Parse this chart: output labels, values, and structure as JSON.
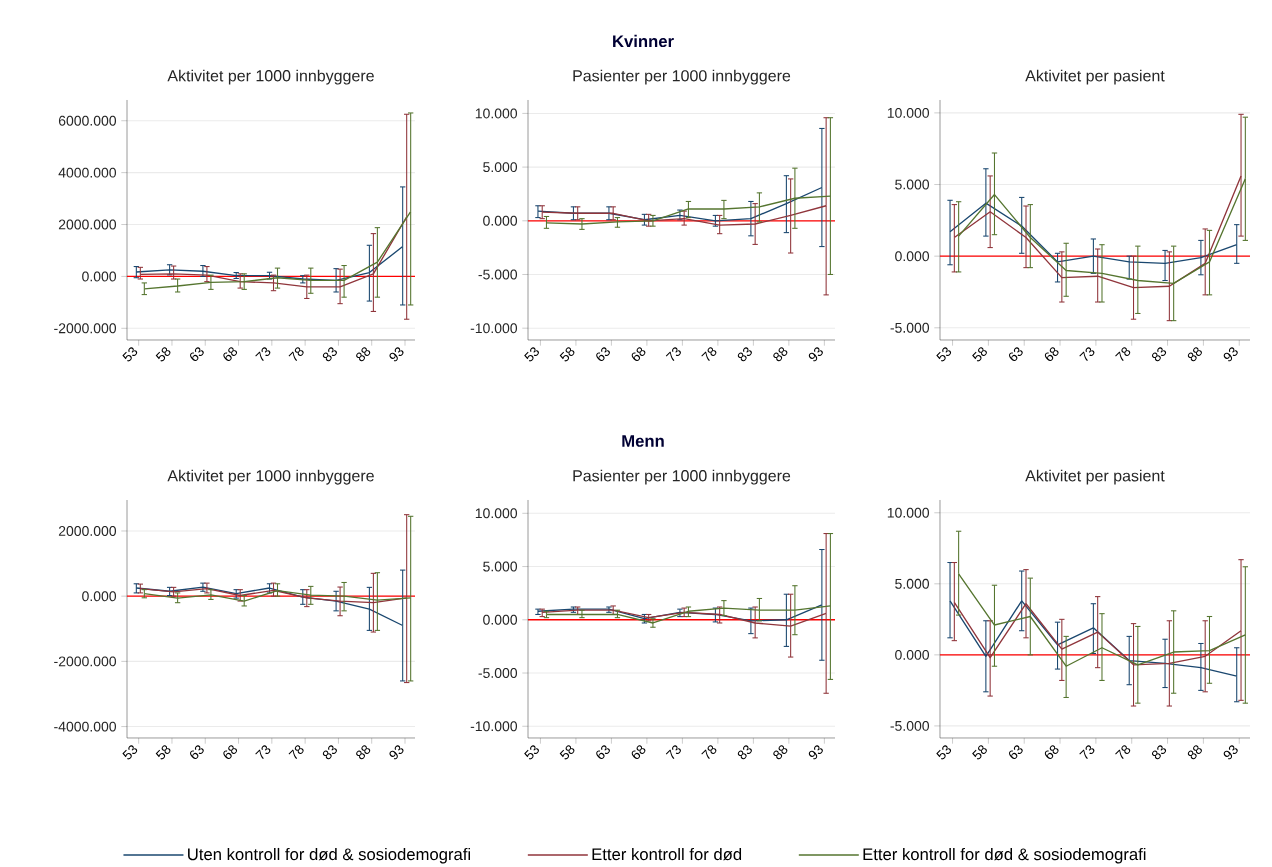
{
  "chart_data": [
    {
      "type": "line",
      "title": "Aktivitet per 1000 innbyggere",
      "categories": [
        "53",
        "58",
        "63",
        "68",
        "73",
        "78",
        "83",
        "88",
        "93"
      ],
      "ylim": [
        -2450,
        6800
      ],
      "yticks": [
        {
          "value": -2000,
          "label": "-2000.000"
        },
        {
          "value": 0,
          "label": "0.000"
        },
        {
          "value": 2000,
          "label": "2000.000"
        },
        {
          "value": 4000,
          "label": "4000.000"
        },
        {
          "value": 6000,
          "label": "6000.000"
        }
      ],
      "grid": "y",
      "ref_lines": [
        {
          "axis": "y",
          "value": 0,
          "color": "#ff0000"
        }
      ],
      "series": [
        {
          "color": "#1a476f",
          "values": [
            170,
            250,
            200,
            30,
            30,
            -100,
            -150,
            150,
            1150
          ],
          "errors": [
            [
              -50,
              380
            ],
            [
              60,
              450
            ],
            [
              0,
              420
            ],
            [
              -80,
              150
            ],
            [
              -100,
              160
            ],
            [
              -250,
              30
            ],
            [
              -600,
              300
            ],
            [
              -950,
              1200
            ],
            [
              -1100,
              3450
            ]
          ]
        },
        {
          "color": "#90353b",
          "values": [
            80,
            100,
            50,
            -200,
            -250,
            -400,
            -400,
            100,
            2300
          ],
          "errors": [
            [
              -100,
              350
            ],
            [
              -100,
              400
            ],
            [
              -200,
              380
            ],
            [
              -450,
              100
            ],
            [
              -550,
              50
            ],
            [
              -850,
              50
            ],
            [
              -1050,
              280
            ],
            [
              -1350,
              1650
            ],
            [
              -1650,
              6250
            ]
          ]
        },
        {
          "color": "#55752f",
          "values": [
            -480,
            -370,
            -230,
            -200,
            -50,
            -150,
            -150,
            550,
            2500
          ],
          "errors": [
            [
              -700,
              -250
            ],
            [
              -600,
              -100
            ],
            [
              -500,
              50
            ],
            [
              -500,
              100
            ],
            [
              -450,
              320
            ],
            [
              -650,
              320
            ],
            [
              -800,
              420
            ],
            [
              -800,
              1880
            ],
            [
              -1100,
              6300
            ]
          ]
        }
      ]
    },
    {
      "type": "line",
      "title": "Pasienter per 1000 innbyggere",
      "annotations": [
        "Kvinner"
      ],
      "categories": [
        "53",
        "58",
        "63",
        "68",
        "73",
        "78",
        "83",
        "88",
        "93"
      ],
      "ylim": [
        -11.1,
        11.25
      ],
      "yticks": [
        {
          "value": -10,
          "label": "-10.000"
        },
        {
          "value": -5,
          "label": "-5.000"
        },
        {
          "value": 0,
          "label": "0.000"
        },
        {
          "value": 5,
          "label": "5.000"
        },
        {
          "value": 10,
          "label": "10.000"
        }
      ],
      "grid": "y",
      "ref_lines": [
        {
          "axis": "y",
          "value": 0,
          "color": "#ff0000"
        }
      ],
      "series": [
        {
          "color": "#1a476f",
          "values": [
            0.9,
            0.7,
            0.7,
            0.1,
            0.5,
            0.0,
            0.2,
            1.6,
            3.1
          ],
          "errors": [
            [
              0.3,
              1.4
            ],
            [
              0.1,
              1.3
            ],
            [
              0.1,
              1.3
            ],
            [
              -0.4,
              0.6
            ],
            [
              0.1,
              1.0
            ],
            [
              -0.5,
              0.5
            ],
            [
              -1.4,
              1.8
            ],
            [
              -1.1,
              4.2
            ],
            [
              -2.4,
              8.6
            ]
          ]
        },
        {
          "color": "#90353b",
          "values": [
            0.8,
            0.7,
            0.7,
            0.0,
            0.2,
            -0.4,
            -0.3,
            0.5,
            1.4
          ],
          "errors": [
            [
              0.2,
              1.4
            ],
            [
              0.1,
              1.3
            ],
            [
              0.1,
              1.3
            ],
            [
              -0.5,
              0.6
            ],
            [
              -0.4,
              0.9
            ],
            [
              -1.2,
              0.5
            ],
            [
              -2.2,
              1.6
            ],
            [
              -3.0,
              3.9
            ],
            [
              -6.9,
              9.6
            ]
          ]
        },
        {
          "color": "#55752f",
          "values": [
            -0.2,
            -0.3,
            -0.1,
            0.0,
            1.1,
            1.1,
            1.3,
            2.1,
            2.3
          ],
          "errors": [
            [
              -0.7,
              0.4
            ],
            [
              -0.8,
              0.2
            ],
            [
              -0.6,
              0.3
            ],
            [
              -0.5,
              0.5
            ],
            [
              0.3,
              1.8
            ],
            [
              0.2,
              1.9
            ],
            [
              -0.1,
              2.6
            ],
            [
              -0.7,
              4.9
            ],
            [
              -5.0,
              9.6
            ]
          ]
        }
      ]
    },
    {
      "type": "line",
      "title": "Aktivitet per pasient",
      "categories": [
        "53",
        "58",
        "63",
        "68",
        "73",
        "78",
        "83",
        "88",
        "93"
      ],
      "ylim": [
        -5.85,
        10.9
      ],
      "yticks": [
        {
          "value": -5,
          "label": "-5.000"
        },
        {
          "value": 0,
          "label": "0.000"
        },
        {
          "value": 5,
          "label": "5.000"
        },
        {
          "value": 10,
          "label": "10.000"
        }
      ],
      "grid": "y",
      "ref_lines": [
        {
          "axis": "y",
          "value": 0,
          "color": "#ff0000"
        }
      ],
      "series": [
        {
          "color": "#1a476f",
          "values": [
            1.7,
            3.7,
            2.1,
            -0.4,
            0.0,
            -0.4,
            -0.5,
            -0.1,
            0.8
          ],
          "errors": [
            [
              -0.6,
              3.9
            ],
            [
              1.4,
              6.1
            ],
            [
              0.2,
              4.1
            ],
            [
              -1.8,
              0.2
            ],
            [
              -1.2,
              1.2
            ],
            [
              -1.6,
              0.0
            ],
            [
              -1.7,
              0.4
            ],
            [
              -1.3,
              1.1
            ],
            [
              -0.5,
              2.2
            ]
          ]
        },
        {
          "color": "#90353b",
          "values": [
            1.3,
            3.1,
            1.3,
            -1.5,
            -1.4,
            -2.2,
            -2.1,
            -0.5,
            5.6
          ],
          "errors": [
            [
              -1.1,
              3.6
            ],
            [
              0.6,
              5.6
            ],
            [
              -0.8,
              3.5
            ],
            [
              -3.2,
              0.3
            ],
            [
              -3.2,
              0.5
            ],
            [
              -4.4,
              0.0
            ],
            [
              -4.5,
              0.3
            ],
            [
              -2.7,
              1.9
            ],
            [
              1.4,
              9.9
            ]
          ]
        },
        {
          "color": "#55752f",
          "values": [
            1.4,
            4.3,
            1.3,
            -1.0,
            -1.2,
            -1.7,
            -1.9,
            -0.4,
            5.4
          ],
          "errors": [
            [
              -1.1,
              3.8
            ],
            [
              1.5,
              7.2
            ],
            [
              -0.8,
              3.6
            ],
            [
              -2.8,
              0.9
            ],
            [
              -3.2,
              0.8
            ],
            [
              -4.0,
              0.7
            ],
            [
              -4.5,
              0.7
            ],
            [
              -2.7,
              1.8
            ],
            [
              1.1,
              9.7
            ]
          ]
        }
      ]
    },
    {
      "type": "line",
      "title": "Aktivitet per 1000 innbyggere",
      "categories": [
        "53",
        "58",
        "63",
        "68",
        "73",
        "78",
        "83",
        "88",
        "93"
      ],
      "ylim": [
        -4350,
        2950
      ],
      "yticks": [
        {
          "value": -4000,
          "label": "-4000.000"
        },
        {
          "value": -2000,
          "label": "-2000.000"
        },
        {
          "value": 0,
          "label": "0.000"
        },
        {
          "value": 2000,
          "label": "2000.000"
        }
      ],
      "grid": "y",
      "ref_lines": [
        {
          "axis": "y",
          "value": 0,
          "color": "#ff0000"
        }
      ],
      "series": [
        {
          "color": "#1a476f",
          "values": [
            250,
            150,
            280,
            80,
            250,
            -30,
            -150,
            -400,
            -900
          ],
          "errors": [
            [
              100,
              380
            ],
            [
              20,
              270
            ],
            [
              150,
              400
            ],
            [
              -60,
              200
            ],
            [
              100,
              380
            ],
            [
              -250,
              200
            ],
            [
              -450,
              150
            ],
            [
              -1050,
              270
            ],
            [
              -2600,
              800
            ]
          ]
        },
        {
          "color": "#90353b",
          "values": [
            230,
            130,
            230,
            20,
            180,
            -50,
            -150,
            -200,
            -50
          ],
          "errors": [
            [
              100,
              370
            ],
            [
              0,
              270
            ],
            [
              100,
              400
            ],
            [
              -150,
              200
            ],
            [
              0,
              400
            ],
            [
              -320,
              200
            ],
            [
              -600,
              280
            ],
            [
              -1100,
              700
            ],
            [
              -2650,
              2500
            ]
          ]
        },
        {
          "color": "#55752f",
          "values": [
            80,
            -60,
            40,
            -150,
            170,
            30,
            0,
            -120,
            -50
          ],
          "errors": [
            [
              -50,
              200
            ],
            [
              -200,
              100
            ],
            [
              -100,
              200
            ],
            [
              -300,
              20
            ],
            [
              0,
              380
            ],
            [
              -250,
              300
            ],
            [
              -450,
              420
            ],
            [
              -1050,
              720
            ],
            [
              -2600,
              2450
            ]
          ]
        }
      ]
    },
    {
      "type": "line",
      "title": "Pasienter per 1000 innbyggere",
      "annotations": [
        "Menn"
      ],
      "categories": [
        "53",
        "58",
        "63",
        "68",
        "73",
        "78",
        "83",
        "88",
        "93"
      ],
      "ylim": [
        -11.1,
        11.25
      ],
      "yticks": [
        {
          "value": -10,
          "label": "-10.000"
        },
        {
          "value": -5,
          "label": "-5.000"
        },
        {
          "value": 0,
          "label": "0.000"
        },
        {
          "value": 5,
          "label": "5.000"
        },
        {
          "value": 10,
          "label": "10.000"
        }
      ],
      "grid": "y",
      "ref_lines": [
        {
          "axis": "y",
          "value": 0,
          "color": "#ff0000"
        }
      ],
      "series": [
        {
          "color": "#1a476f",
          "values": [
            0.8,
            1.0,
            1.0,
            0.1,
            0.7,
            0.5,
            -0.1,
            0.0,
            1.4
          ],
          "errors": [
            [
              0.5,
              1.0
            ],
            [
              0.7,
              1.2
            ],
            [
              0.7,
              1.2
            ],
            [
              -0.3,
              0.5
            ],
            [
              0.3,
              1.0
            ],
            [
              -0.2,
              1.1
            ],
            [
              -1.3,
              1.1
            ],
            [
              -2.5,
              2.4
            ],
            [
              -3.8,
              6.6
            ]
          ]
        },
        {
          "color": "#90353b",
          "values": [
            0.7,
            0.9,
            0.9,
            0.2,
            0.7,
            0.5,
            -0.3,
            -0.6,
            0.6
          ],
          "errors": [
            [
              0.3,
              1.0
            ],
            [
              0.5,
              1.2
            ],
            [
              0.5,
              1.3
            ],
            [
              -0.1,
              0.5
            ],
            [
              0.3,
              1.1
            ],
            [
              -0.3,
              1.2
            ],
            [
              -1.7,
              1.2
            ],
            [
              -3.5,
              2.4
            ],
            [
              -6.9,
              8.1
            ]
          ]
        },
        {
          "color": "#55752f",
          "values": [
            0.5,
            0.5,
            0.5,
            -0.3,
            0.8,
            1.1,
            0.9,
            0.9,
            1.3
          ],
          "errors": [
            [
              0.2,
              0.8
            ],
            [
              0.2,
              0.9
            ],
            [
              0.2,
              0.9
            ],
            [
              -0.7,
              0.1
            ],
            [
              0.3,
              1.2
            ],
            [
              0.4,
              1.8
            ],
            [
              -0.1,
              2.0
            ],
            [
              -1.4,
              3.2
            ],
            [
              -5.6,
              8.1
            ]
          ]
        }
      ]
    },
    {
      "type": "line",
      "title": "Aktivitet per pasient",
      "legend": "bottom",
      "categories": [
        "53",
        "58",
        "63",
        "68",
        "73",
        "78",
        "83",
        "88",
        "93"
      ],
      "ylim": [
        -5.85,
        10.9
      ],
      "yticks": [
        {
          "value": -5,
          "label": "-5.000"
        },
        {
          "value": 0,
          "label": "0.000"
        },
        {
          "value": 5,
          "label": "5.000"
        },
        {
          "value": 10,
          "label": "10.000"
        }
      ],
      "grid": "y",
      "ref_lines": [
        {
          "axis": "y",
          "value": 0,
          "color": "#ff0000"
        }
      ],
      "series": [
        {
          "name": "Uten kontroll for død & sosiodemografi",
          "color": "#1a476f",
          "values": [
            3.8,
            -0.1,
            3.8,
            0.7,
            1.9,
            -0.4,
            -0.6,
            -0.9,
            -1.5
          ],
          "errors": [
            [
              1.2,
              6.5
            ],
            [
              -2.6,
              2.4
            ],
            [
              1.7,
              5.9
            ],
            [
              -1.0,
              2.3
            ],
            [
              0.1,
              3.6
            ],
            [
              -2.1,
              1.3
            ],
            [
              -2.3,
              1.1
            ],
            [
              -2.5,
              0.8
            ],
            [
              -3.3,
              0.5
            ]
          ]
        },
        {
          "name": "Etter kontroll for død",
          "color": "#90353b",
          "values": [
            3.7,
            -0.2,
            3.6,
            0.4,
            1.6,
            -0.7,
            -0.6,
            -0.1,
            1.7
          ],
          "errors": [
            [
              1.0,
              6.5
            ],
            [
              -2.9,
              2.4
            ],
            [
              1.2,
              6.0
            ],
            [
              -1.8,
              2.5
            ],
            [
              -0.9,
              4.1
            ],
            [
              -3.6,
              2.2
            ],
            [
              -3.6,
              2.4
            ],
            [
              -2.6,
              2.4
            ],
            [
              -3.2,
              6.7
            ]
          ]
        },
        {
          "name": "Etter kontroll for død & sosiodemografi",
          "color": "#55752f",
          "values": [
            5.7,
            2.1,
            2.7,
            -0.8,
            0.5,
            -0.7,
            0.2,
            0.3,
            1.4
          ],
          "errors": [
            [
              2.8,
              8.7
            ],
            [
              -0.8,
              4.9
            ],
            [
              0.0,
              5.4
            ],
            [
              -3.0,
              1.3
            ],
            [
              -1.8,
              2.9
            ],
            [
              -3.4,
              2.0
            ],
            [
              -2.7,
              3.1
            ],
            [
              -2.0,
              2.7
            ],
            [
              -3.4,
              6.2
            ]
          ]
        }
      ]
    }
  ]
}
